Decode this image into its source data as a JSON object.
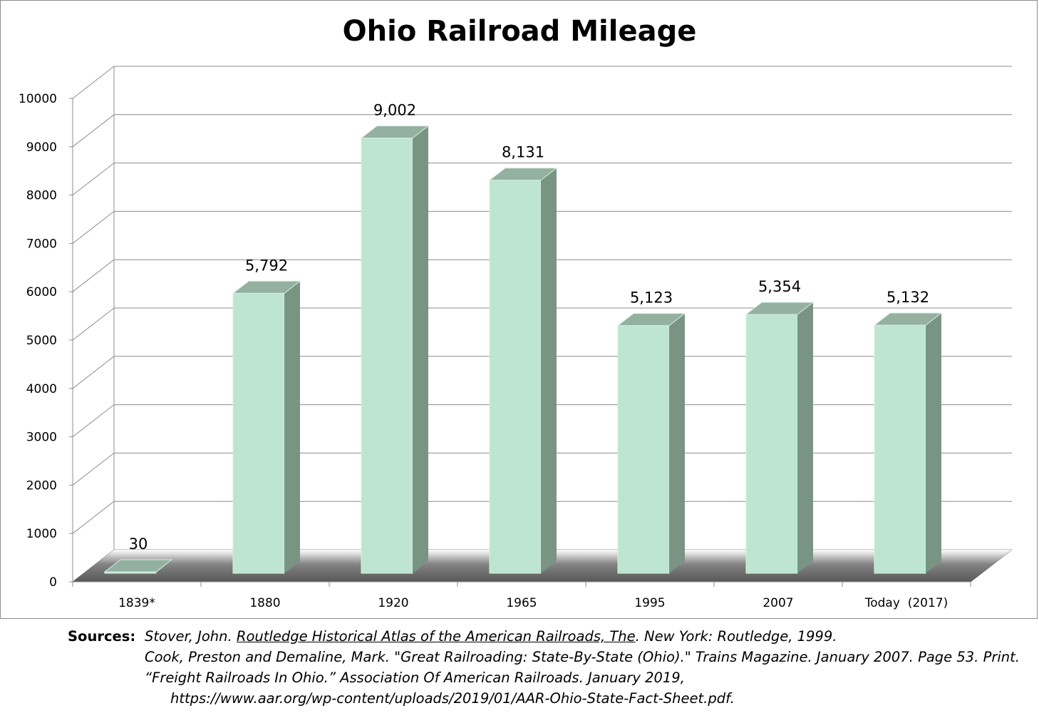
{
  "chart_data": {
    "type": "bar",
    "title": "Ohio Railroad Mileage",
    "categories": [
      "1839*",
      "1880",
      "1920",
      "1965",
      "1995",
      "2007",
      "Today  (2017)"
    ],
    "values": [
      30,
      5792,
      9002,
      8131,
      5123,
      5354,
      5132
    ],
    "data_labels": [
      "30",
      "5,792",
      "9,002",
      "8,131",
      "5,123",
      "5,354",
      "5,132"
    ],
    "y_ticks": [
      "0",
      "1000",
      "2000",
      "3000",
      "4000",
      "5000",
      "6000",
      "7000",
      "8000",
      "9000",
      "10000"
    ],
    "ylim": [
      0,
      10000
    ],
    "grid": true,
    "style": "3d-column",
    "colors": {
      "bar_front": "#bde5d1",
      "bar_side": "#7a9484",
      "bar_top": "#94b0a0",
      "grid": "#8c8c8c",
      "floor_shadow": "#555555"
    }
  },
  "sources": {
    "heading": "Sources:",
    "line1_pre": "Stover, John. ",
    "line1_title": "Routledge Historical Atlas of the American Railroads, The",
    "line1_post": ". New York: Routledge, 1999.",
    "line2": "Cook, Preston and Demaline, Mark. \"Great Railroading: State-By-State (Ohio).\" Trains Magazine. January 2007. Page 53. Print.",
    "line3": "“Freight Railroads In Ohio.” Association Of American Railroads. January 2019,",
    "line4": "https://www.aar.org/wp-content/uploads/2019/01/AAR-Ohio-State-Fact-Sheet.pdf."
  }
}
